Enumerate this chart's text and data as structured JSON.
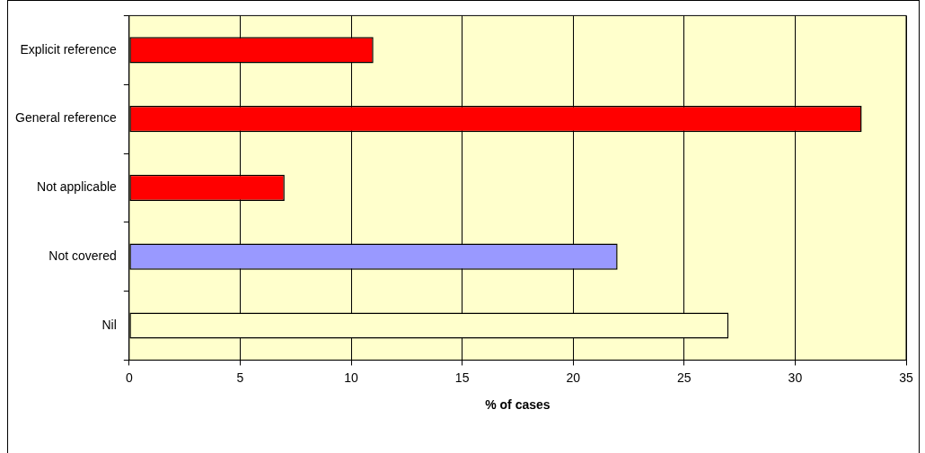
{
  "chart_data": {
    "type": "bar",
    "orientation": "horizontal",
    "xlabel": "% of cases",
    "categories": [
      "Explicit reference",
      "General reference",
      "Not applicable",
      "Not covered",
      "Nil"
    ],
    "values": [
      11,
      33,
      7,
      22,
      27
    ],
    "colors": [
      "#ff0000",
      "#ff0000",
      "#ff0000",
      "#9999ff",
      "#ffffcc"
    ],
    "xlim": [
      0,
      35
    ],
    "xticks": [
      0,
      5,
      10,
      15,
      20,
      25,
      30,
      35
    ],
    "grid": "x",
    "legend": false
  }
}
